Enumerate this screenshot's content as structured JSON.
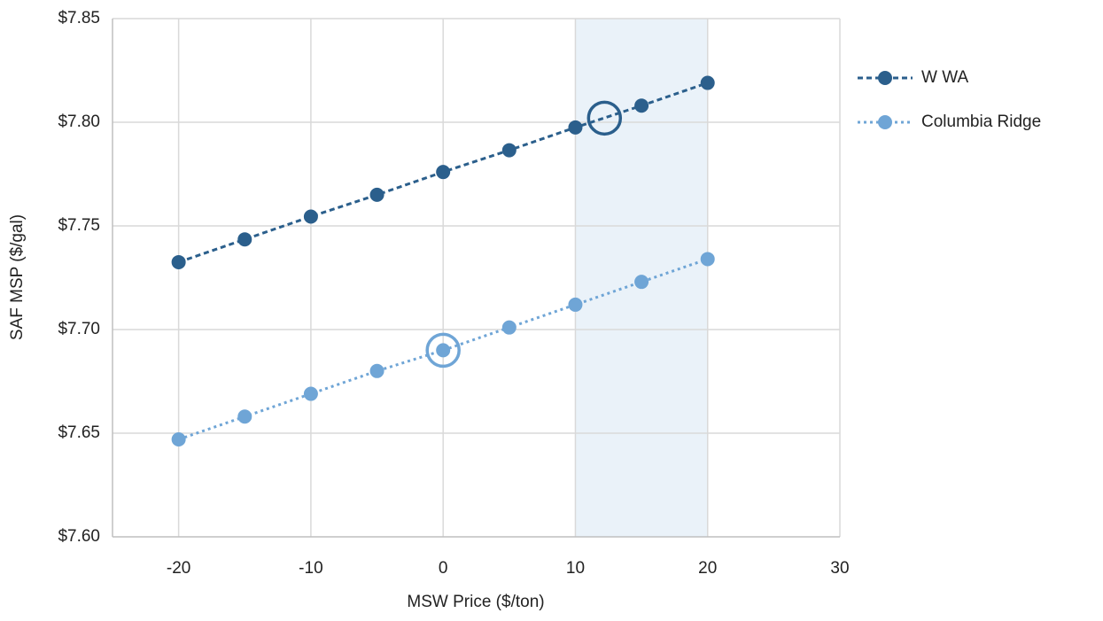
{
  "chart_data": {
    "type": "line",
    "x_label": "MSW Price ($/ton)",
    "y_label": "SAF MSP ($/gal)",
    "x": [
      -20,
      -15,
      -10,
      -5,
      0,
      5,
      10,
      15,
      20
    ],
    "series": [
      {
        "name": "W WA",
        "color": "#2b5f8c",
        "dash": "6,4",
        "values": [
          7.7325,
          7.7435,
          7.7545,
          7.765,
          7.776,
          7.7865,
          7.7975,
          7.808,
          7.819
        ]
      },
      {
        "name": "Columbia Ridge",
        "color": "#6fa5d6",
        "dash": "3,4",
        "values": [
          7.647,
          7.658,
          7.669,
          7.68,
          7.69,
          7.701,
          7.712,
          7.723,
          7.734
        ]
      }
    ],
    "xlim": [
      -25,
      30
    ],
    "xticks": [
      -20,
      -10,
      0,
      10,
      20,
      30
    ],
    "ylim": [
      7.6,
      7.85
    ],
    "yticks": [
      {
        "value": 7.6,
        "label": "$7.60"
      },
      {
        "value": 7.65,
        "label": "$7.65"
      },
      {
        "value": 7.7,
        "label": "$7.70"
      },
      {
        "value": 7.75,
        "label": "$7.75"
      },
      {
        "value": 7.8,
        "label": "$7.80"
      },
      {
        "value": 7.85,
        "label": "$7.85"
      }
    ],
    "grid": true,
    "legend": "right",
    "highlight_xrange": [
      10,
      20
    ],
    "highlight_color": "#eaf2f9",
    "circles": [
      {
        "x": 12.2,
        "y": 7.802,
        "color": "#2b5f8c"
      },
      {
        "x": 0,
        "y": 7.69,
        "color": "#6fa5d6"
      }
    ]
  }
}
